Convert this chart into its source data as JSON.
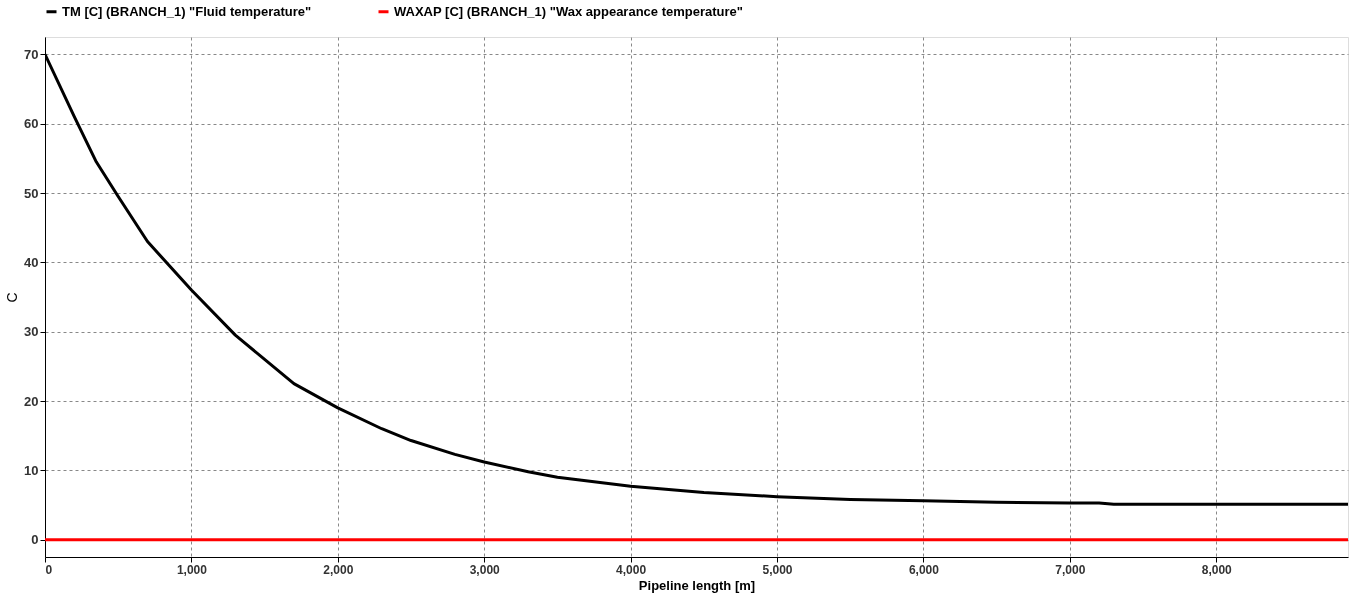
{
  "chart_data": {
    "type": "line",
    "xlabel": "Pipeline length [m]",
    "ylabel": "C",
    "x": [
      0,
      200,
      350,
      500,
      700,
      1000,
      1300,
      1500,
      1700,
      2000,
      2300,
      2500,
      2800,
      3000,
      3300,
      3500,
      4000,
      4500,
      5000,
      5500,
      6000,
      6500,
      7000,
      7200,
      7300,
      8000,
      8900
    ],
    "series": [
      {
        "name": "TM [C] (BRANCH_1) \"Fluid temperature\"",
        "color": "#000000",
        "values": [
          70,
          61,
          54.5,
          49.5,
          43,
          36,
          29.5,
          26,
          22.5,
          19,
          16,
          14.3,
          12.3,
          11.2,
          9.8,
          9,
          7.7,
          6.8,
          6.2,
          5.8,
          5.6,
          5.4,
          5.3,
          5.3,
          5.1,
          5.1,
          5.1
        ]
      },
      {
        "name": "WAXAP [C] (BRANCH_1) \"Wax appearance temperature\"",
        "color": "#ff0000",
        "x": [
          0,
          8900
        ],
        "values": [
          0,
          0
        ]
      }
    ],
    "xlim": [
      0,
      8900
    ],
    "ylim": [
      -2.5,
      72.5
    ],
    "xticks": [
      0,
      {
        "value": 1000,
        "label": "1,000"
      },
      {
        "value": 2000,
        "label": "2,000"
      },
      {
        "value": 3000,
        "label": "3,000"
      },
      {
        "value": 4000,
        "label": "4,000"
      },
      {
        "value": 5000,
        "label": "5,000"
      },
      {
        "value": 6000,
        "label": "6,000"
      },
      {
        "value": 7000,
        "label": "7,000"
      },
      {
        "value": 8000,
        "label": "8,000"
      }
    ],
    "yticks": [
      0,
      10,
      20,
      30,
      40,
      50,
      60,
      70
    ],
    "grid": true,
    "legend": "top",
    "marker": "none",
    "line_style": "solid"
  }
}
